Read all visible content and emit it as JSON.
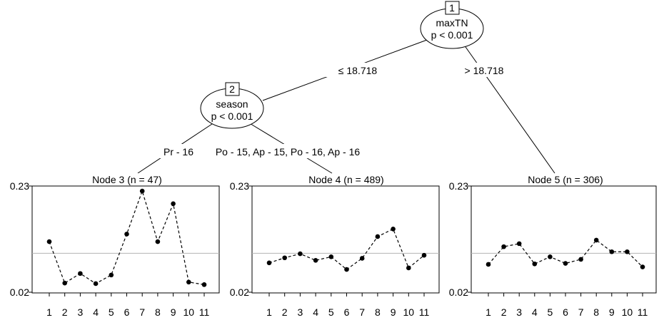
{
  "tree": {
    "inner_nodes": [
      {
        "id": "1",
        "variable": "maxTN",
        "p_value": "p < 0.001"
      },
      {
        "id": "2",
        "variable": "season",
        "p_value": "p < 0.001"
      }
    ],
    "edges": [
      {
        "from": "1",
        "to": "2",
        "label": "≤ 18.718"
      },
      {
        "from": "1",
        "to": "5",
        "label": "> 18.718"
      },
      {
        "from": "2",
        "to": "3",
        "label": "Pr - 16"
      },
      {
        "from": "2",
        "to": "4",
        "label": "Po - 15, Ap - 15, Po - 16, Ap - 16"
      }
    ]
  },
  "chart_data": [
    {
      "type": "line",
      "title": "Node 3 (n = 47)",
      "x": [
        1,
        2,
        3,
        4,
        5,
        6,
        7,
        8,
        9,
        10,
        11
      ],
      "values": [
        0.12,
        0.038,
        0.057,
        0.037,
        0.054,
        0.135,
        0.22,
        0.12,
        0.195,
        0.04,
        0.035
      ],
      "reference_line": 0.097,
      "yticks": [
        "0.02",
        "0.23"
      ],
      "ylim": [
        0.02,
        0.23
      ],
      "xticks": [
        "1",
        "2",
        "3",
        "4",
        "5",
        "6",
        "7",
        "8",
        "9",
        "10",
        "11"
      ]
    },
    {
      "type": "line",
      "title": "Node 4 (n = 489)",
      "x": [
        1,
        2,
        3,
        4,
        5,
        6,
        7,
        8,
        9,
        10,
        11
      ],
      "values": [
        0.078,
        0.088,
        0.096,
        0.083,
        0.09,
        0.065,
        0.087,
        0.13,
        0.145,
        0.068,
        0.093
      ],
      "reference_line": 0.097,
      "yticks": [
        "0.02",
        "0.23"
      ],
      "ylim": [
        0.02,
        0.23
      ],
      "xticks": [
        "1",
        "2",
        "3",
        "4",
        "5",
        "6",
        "7",
        "8",
        "9",
        "10",
        "11"
      ]
    },
    {
      "type": "line",
      "title": "Node 5 (n = 306)",
      "x": [
        1,
        2,
        3,
        4,
        5,
        6,
        7,
        8,
        9,
        10,
        11
      ],
      "values": [
        0.075,
        0.11,
        0.116,
        0.076,
        0.09,
        0.077,
        0.085,
        0.123,
        0.1,
        0.1,
        0.07
      ],
      "reference_line": 0.097,
      "yticks": [
        "0.02",
        "0.23"
      ],
      "ylim": [
        0.02,
        0.23
      ],
      "xticks": [
        "1",
        "2",
        "3",
        "4",
        "5",
        "6",
        "7",
        "8",
        "9",
        "10",
        "11"
      ]
    }
  ],
  "colors": {
    "line": "#000000",
    "reference_line": "#b3b3b3"
  }
}
